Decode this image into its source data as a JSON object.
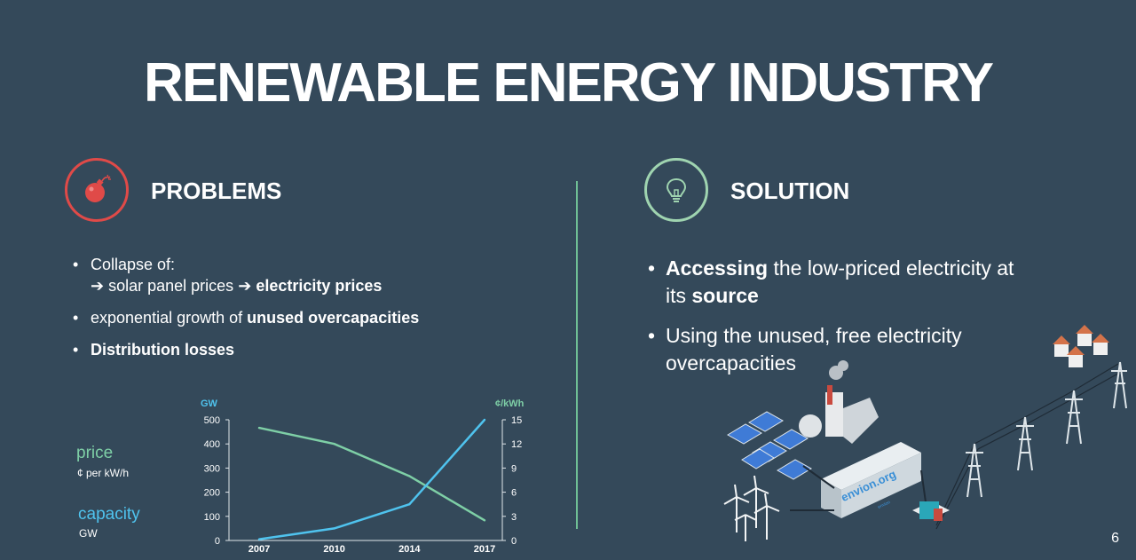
{
  "title": "RENEWABLE ENERGY INDUSTRY",
  "problems": {
    "heading": "PROBLEMS",
    "icon": "bomb-icon",
    "color": "#e04a48",
    "bullet1_line1": "Collapse of:",
    "bullet1_arrow": "➔",
    "bullet1_part1": "solar panel prices",
    "bullet1_part2": "electricity prices",
    "bullet2_plain": "exponential growth of",
    "bullet2_bold": "unused overcapacities",
    "bullet3_bold": "Distribution losses"
  },
  "solution": {
    "heading": "SOLUTION",
    "icon": "lightbulb-icon",
    "color": "#9fd4b0",
    "bullet1_bold1": "Accessing",
    "bullet1_plain1": "the low-priced electricity at its",
    "bullet1_bold2": "source",
    "bullet2": "Using the unused, free electricity overcapacities"
  },
  "legend": {
    "price": "price",
    "price_sub": "¢ per kW/h",
    "capacity": "capacity",
    "capacity_sub": "GW"
  },
  "illustration": {
    "container_label": "envion.org",
    "container_sublabel": "envion"
  },
  "page_number": "6",
  "chart_data": {
    "type": "line",
    "x": [
      "2007",
      "2010",
      "2014",
      "2017"
    ],
    "left_axis": {
      "label": "GW",
      "ticks": [
        0,
        100,
        200,
        300,
        400,
        500
      ],
      "ylim": [
        0,
        500
      ]
    },
    "right_axis": {
      "label": "¢/kWh",
      "ticks": [
        0,
        3,
        6,
        9,
        12,
        15
      ],
      "ylim": [
        0,
        15
      ]
    },
    "series": [
      {
        "name": "price",
        "axis": "right",
        "color": "#7ecfa6",
        "values": [
          14,
          12,
          8,
          2.5
        ]
      },
      {
        "name": "capacity",
        "axis": "left",
        "color": "#4fc3ee",
        "values": [
          5,
          50,
          150,
          500
        ]
      }
    ]
  }
}
